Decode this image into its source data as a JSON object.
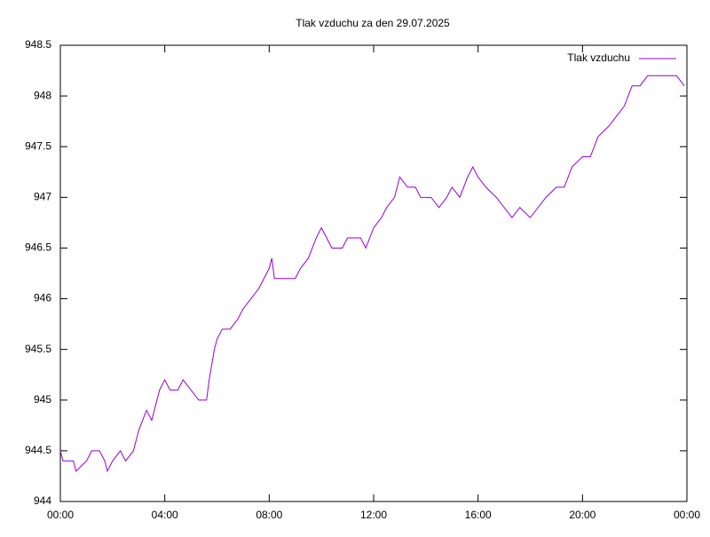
{
  "chart_data": {
    "type": "line",
    "title": "Tlak vzduchu za den 29.07.2025",
    "x": [
      0,
      0.1,
      0.5,
      0.6,
      1.0,
      1.2,
      1.5,
      1.7,
      1.8,
      2.0,
      2.3,
      2.5,
      2.8,
      3.0,
      3.3,
      3.5,
      3.8,
      4.0,
      4.2,
      4.5,
      4.7,
      5.0,
      5.3,
      5.6,
      5.7,
      5.9,
      6.0,
      6.2,
      6.5,
      6.8,
      7.0,
      7.3,
      7.6,
      7.8,
      8.0,
      8.1,
      8.2,
      8.5,
      9.0,
      9.2,
      9.5,
      9.8,
      10.0,
      10.2,
      10.4,
      10.8,
      11.0,
      11.5,
      11.7,
      12.0,
      12.3,
      12.5,
      12.8,
      13.0,
      13.3,
      13.6,
      13.8,
      14.2,
      14.5,
      14.8,
      15.0,
      15.3,
      15.6,
      15.8,
      16.0,
      16.3,
      16.7,
      17.0,
      17.3,
      17.6,
      18.0,
      18.3,
      18.6,
      19.0,
      19.3,
      19.6,
      20.0,
      20.3,
      20.6,
      21.0,
      21.3,
      21.6,
      21.9,
      22.2,
      22.5,
      23.0,
      23.3,
      23.6,
      23.9
    ],
    "series": [
      {
        "name": "Tlak vzduchu",
        "color": "#9400d3",
        "values": [
          944.5,
          944.4,
          944.4,
          944.3,
          944.4,
          944.5,
          944.5,
          944.4,
          944.3,
          944.4,
          944.5,
          944.4,
          944.5,
          944.7,
          944.9,
          944.8,
          945.1,
          945.2,
          945.1,
          945.1,
          945.2,
          945.1,
          945.0,
          945.0,
          945.2,
          945.5,
          945.6,
          945.7,
          945.7,
          945.8,
          945.9,
          946.0,
          946.1,
          946.2,
          946.3,
          946.4,
          946.2,
          946.2,
          946.2,
          946.3,
          946.4,
          946.6,
          946.7,
          946.6,
          946.5,
          946.5,
          946.6,
          946.6,
          946.5,
          946.7,
          946.8,
          946.9,
          947.0,
          947.2,
          947.1,
          947.1,
          947.0,
          947.0,
          946.9,
          947.0,
          947.1,
          947.0,
          947.2,
          947.3,
          947.2,
          947.1,
          947.0,
          946.9,
          946.8,
          946.9,
          946.8,
          946.9,
          947.0,
          947.1,
          947.1,
          947.3,
          947.4,
          947.4,
          947.6,
          947.7,
          947.8,
          947.9,
          948.1,
          948.1,
          948.2,
          948.2,
          948.2,
          948.2,
          948.1
        ]
      }
    ],
    "xlim": [
      0,
      24
    ],
    "xticks": [
      {
        "value": 0,
        "label": "00:00"
      },
      {
        "value": 4,
        "label": "04:00"
      },
      {
        "value": 8,
        "label": "08:00"
      },
      {
        "value": 12,
        "label": "12:00"
      },
      {
        "value": 16,
        "label": "16:00"
      },
      {
        "value": 20,
        "label": "20:00"
      },
      {
        "value": 24,
        "label": "00:00"
      }
    ],
    "ylim": [
      944,
      948.5
    ],
    "yticks": [
      944,
      944.5,
      945,
      945.5,
      946,
      946.5,
      947,
      947.5,
      948,
      948.5
    ],
    "legend": "top-right"
  }
}
